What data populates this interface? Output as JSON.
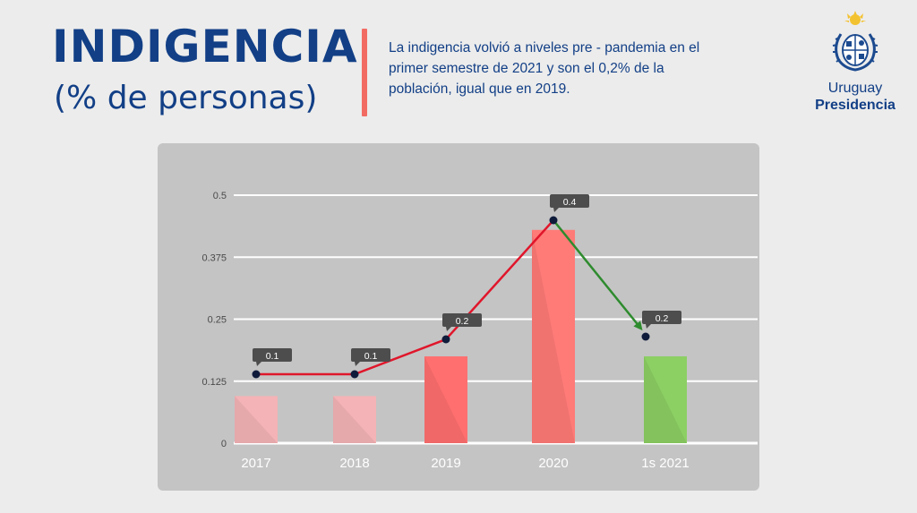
{
  "header": {
    "title": "INDIGENCIA",
    "subtitle": "(% de personas)",
    "description": "La indigencia volvió a niveles pre - pandemia en el primer semestre de 2021 y son el 0,2% de la población, igual que en 2019."
  },
  "logo": {
    "country": "Uruguay",
    "presidency": "Presidencia"
  },
  "colors": {
    "title": "#123f86",
    "accent": "#f26b63",
    "trend_up": "#e0162b",
    "trend_down": "#2e8b2e",
    "panel": "#c4c4c4"
  },
  "chart_data": {
    "type": "bar",
    "categories": [
      "2017",
      "2018",
      "2019",
      "2020",
      "1s 2021"
    ],
    "values": [
      0.1,
      0.1,
      0.2,
      0.4,
      0.2
    ],
    "data_labels": [
      "0.1",
      "0.1",
      "0.2",
      "0.4",
      "0.2"
    ],
    "bar_colors": [
      "#f4b3b6",
      "#f4b3b6",
      "#ff6f6f",
      "#ff7b78",
      "#8ccf63"
    ],
    "trend_line": {
      "segments": [
        {
          "from": 0,
          "to": 3,
          "color": "#e0162b"
        },
        {
          "from": 3,
          "to": 4,
          "color": "#2e8b2e"
        }
      ]
    },
    "y_ticks": [
      0,
      0.125,
      0.25,
      0.375,
      0.5
    ],
    "y_tick_labels": [
      "0",
      "0.125",
      "0.25",
      "0.375",
      "0.5"
    ],
    "ylim": [
      0,
      0.5
    ],
    "grid": true,
    "legend": "none",
    "title": "",
    "xlabel": "",
    "ylabel": ""
  }
}
